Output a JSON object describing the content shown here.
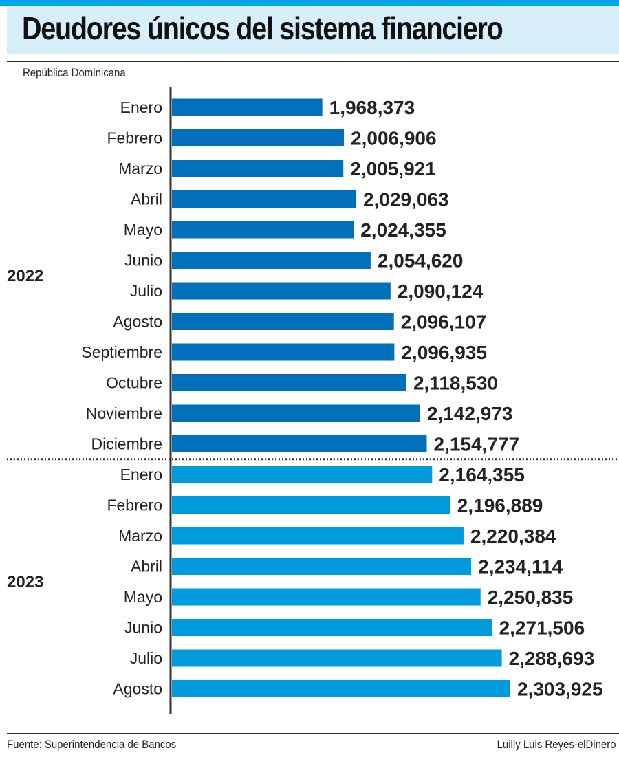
{
  "header": {
    "title": "Deudores únicos del sistema financiero",
    "subtitle": "República Dominicana"
  },
  "footer": {
    "source": "Fuente: Superintendencia de Bancos",
    "credit": "Luilly Luis Reyes-elDinero"
  },
  "colors": {
    "accent_bar": "#00a6e8",
    "title_band": "#d6effb",
    "series_2022": "#0070bb",
    "series_2023": "#009bdc",
    "text": "#222222"
  },
  "chart_data": {
    "type": "bar",
    "orientation": "horizontal",
    "title": "Deudores únicos del sistema financiero",
    "subtitle": "República Dominicana",
    "xlabel": "",
    "ylabel": "",
    "grid": false,
    "legend": "none",
    "xlim": [
      1700000,
      2400000
    ],
    "groups": [
      {
        "name": "2022",
        "categories": [
          "Enero",
          "Febrero",
          "Marzo",
          "Abril",
          "Mayo",
          "Junio",
          "Julio",
          "Agosto",
          "Septiembre",
          "Octubre",
          "Noviembre",
          "Diciembre"
        ],
        "values": [
          1968373,
          2006906,
          2005921,
          2029063,
          2024355,
          2054620,
          2090124,
          2096107,
          2096935,
          2118530,
          2142973,
          2154777
        ],
        "labels": [
          "1,968,373",
          "2,006,906",
          "2,005,921",
          "2,029,063",
          "2,024,355",
          "2,054,620",
          "2,090,124",
          "2,096,107",
          "2,096,935",
          "2,118,530",
          "2,142,973",
          "2,154,777"
        ]
      },
      {
        "name": "2023",
        "categories": [
          "Enero",
          "Febrero",
          "Marzo",
          "Abril",
          "Mayo",
          "Junio",
          "Julio",
          "Agosto"
        ],
        "values": [
          2164355,
          2196889,
          2220384,
          2234114,
          2250835,
          2271506,
          2288693,
          2303925
        ],
        "labels": [
          "2,164,355",
          "2,196,889",
          "2,220,384",
          "2,234,114",
          "2,250,835",
          "2,271,506",
          "2,288,693",
          "2,303,925"
        ]
      }
    ]
  }
}
